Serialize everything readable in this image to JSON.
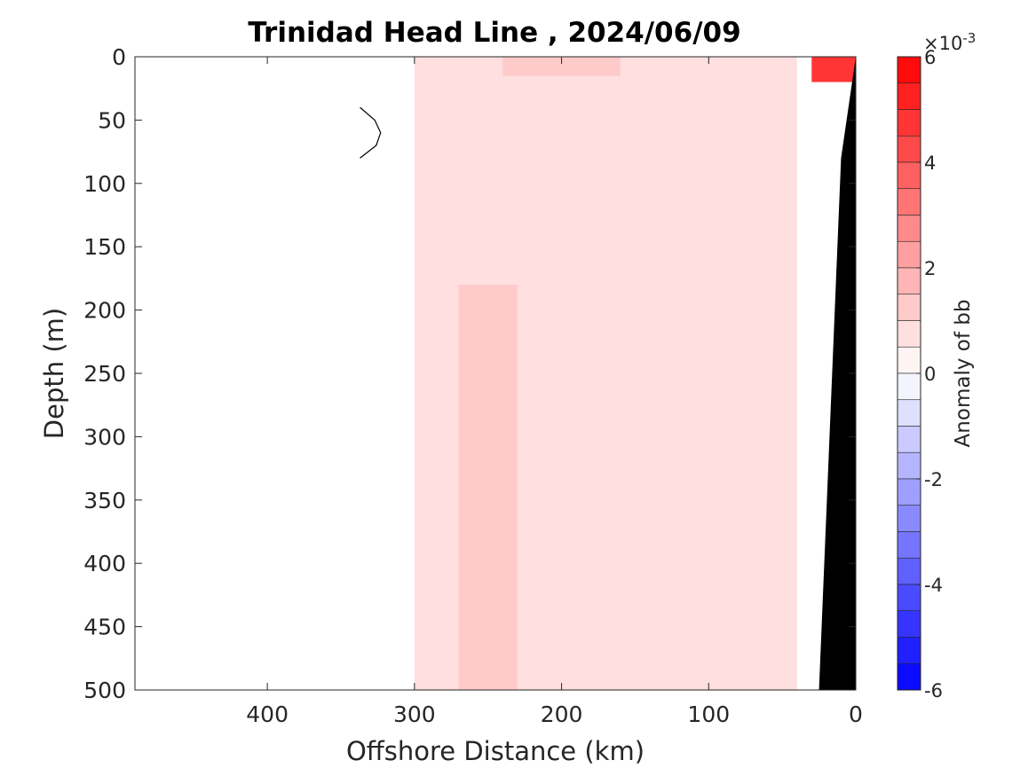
{
  "chart_data": {
    "type": "heatmap",
    "title": "Trinidad Head Line , 2024/06/09",
    "xlabel": "Offshore Distance (km)",
    "ylabel": "Depth (m)",
    "xlim": [
      490,
      0
    ],
    "ylim": [
      0,
      500
    ],
    "x_reversed": true,
    "y_reversed": true,
    "x_ticks": [
      400,
      300,
      200,
      100,
      0
    ],
    "x_tick_labels": [
      "400",
      "300",
      "200",
      "100",
      "0"
    ],
    "y_ticks": [
      0,
      50,
      100,
      150,
      200,
      250,
      300,
      350,
      400,
      450,
      500
    ],
    "y_tick_labels": [
      "0",
      "50",
      "100",
      "150",
      "200",
      "250",
      "300",
      "350",
      "400",
      "450",
      "500"
    ],
    "grid": false,
    "colorbar": {
      "label": "Anomaly of bb",
      "range": [
        -6,
        6
      ],
      "ticks": [
        -6,
        -4,
        -2,
        0,
        2,
        4,
        6
      ],
      "tick_labels": [
        "-6",
        "-4",
        "-2",
        "0",
        "2",
        "4",
        "6"
      ],
      "multiplier_symbol": "×",
      "multiplier_base": "10",
      "multiplier_exponent": "-3",
      "levels": 24,
      "color_low": "#0000ff",
      "color_mid": "#ffffff",
      "color_high": "#ff0000"
    },
    "regions": [
      {
        "kind": "anomaly",
        "value": 0.6,
        "x": [
          278,
          300,
          300,
          278
        ],
        "z": [
          0,
          0,
          500,
          500
        ]
      },
      {
        "kind": "anomaly",
        "value": 0.6,
        "x": [
          278,
          40,
          40,
          278
        ],
        "z": [
          0,
          0,
          500,
          500
        ]
      },
      {
        "kind": "anomaly",
        "value": 1.1,
        "x": [
          270,
          230,
          230,
          270
        ],
        "z": [
          180,
          180,
          500,
          500
        ]
      },
      {
        "kind": "anomaly",
        "value": 1.2,
        "x": [
          240,
          160,
          160,
          240
        ],
        "z": [
          0,
          0,
          15,
          15
        ]
      },
      {
        "kind": "anomaly",
        "value": 4.5,
        "x": [
          30,
          0,
          0,
          30
        ],
        "z": [
          0,
          0,
          20,
          20
        ]
      }
    ],
    "bathymetry": {
      "color": "#000000",
      "x": [
        0,
        10,
        25,
        28,
        0
      ],
      "z": [
        0,
        80,
        500,
        500,
        500
      ]
    },
    "contour_line": {
      "level": 0,
      "x": [
        337,
        327,
        323,
        326,
        337
      ],
      "z": [
        40,
        50,
        60,
        70,
        80
      ]
    }
  }
}
